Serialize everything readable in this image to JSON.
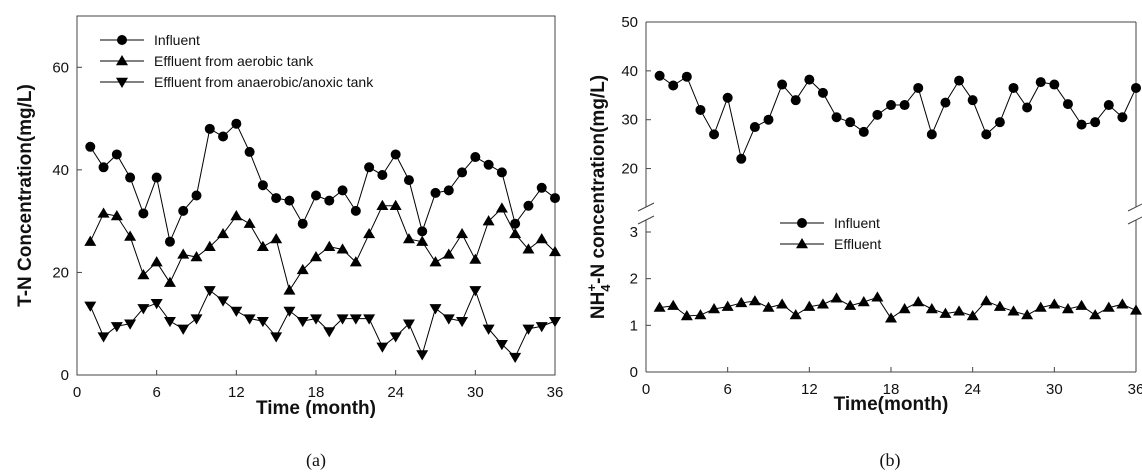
{
  "chart_data": [
    {
      "type": "line",
      "panel_label": "(a)",
      "xlabel": "Time (month)",
      "ylabel": "T-N Concentration(mg/L)",
      "xlim": [
        0,
        36
      ],
      "ylim": [
        0,
        70
      ],
      "xticks": [
        0,
        6,
        12,
        18,
        24,
        30,
        36
      ],
      "yticks": [
        0,
        20,
        40,
        60
      ],
      "legend_position": "top-left",
      "series": [
        {
          "name": "Influent",
          "marker": "circle",
          "x": [
            1,
            2,
            3,
            4,
            5,
            6,
            7,
            8,
            9,
            10,
            11,
            12,
            13,
            14,
            15,
            16,
            17,
            18,
            19,
            20,
            21,
            22,
            23,
            24,
            25,
            26,
            27,
            28,
            29,
            30,
            31,
            32,
            33,
            34,
            35,
            36
          ],
          "values": [
            44.5,
            40.5,
            43.0,
            38.5,
            31.5,
            38.5,
            26.0,
            32.0,
            35.0,
            48.0,
            46.5,
            49.0,
            43.5,
            37.0,
            34.5,
            34.0,
            29.5,
            35.0,
            34.0,
            36.0,
            32.0,
            40.5,
            39.0,
            43.0,
            38.0,
            28.0,
            35.5,
            36.0,
            39.5,
            42.5,
            41.0,
            39.5,
            29.5,
            33.0,
            36.5,
            34.5
          ]
        },
        {
          "name": "Effluent from aerobic tank",
          "marker": "triangle-up",
          "x": [
            1,
            2,
            3,
            4,
            5,
            6,
            7,
            8,
            9,
            10,
            11,
            12,
            13,
            14,
            15,
            16,
            17,
            18,
            19,
            20,
            21,
            22,
            23,
            24,
            25,
            26,
            27,
            28,
            29,
            30,
            31,
            32,
            33,
            34,
            35,
            36
          ],
          "values": [
            26.0,
            31.5,
            31.0,
            27.0,
            19.5,
            22.0,
            18.0,
            23.5,
            23.0,
            25.0,
            27.5,
            31.0,
            29.5,
            25.0,
            26.5,
            16.5,
            20.5,
            23.0,
            25.0,
            24.5,
            22.0,
            27.5,
            33.0,
            33.0,
            26.5,
            26.0,
            22.0,
            23.5,
            27.5,
            22.5,
            30.0,
            32.5,
            27.5,
            24.5,
            26.5,
            24.0
          ]
        },
        {
          "name": "Effluent from anaerobic/anoxic tank",
          "marker": "triangle-down",
          "x": [
            1,
            2,
            3,
            4,
            5,
            6,
            7,
            8,
            9,
            10,
            11,
            12,
            13,
            14,
            15,
            16,
            17,
            18,
            19,
            20,
            21,
            22,
            23,
            24,
            25,
            26,
            27,
            28,
            29,
            30,
            31,
            32,
            33,
            34,
            35,
            36
          ],
          "values": [
            13.5,
            7.5,
            9.5,
            10.0,
            13.0,
            14.0,
            10.5,
            9.0,
            11.0,
            16.5,
            14.5,
            12.5,
            11.0,
            10.5,
            7.5,
            12.5,
            10.5,
            11.0,
            8.5,
            11.0,
            11.0,
            11.0,
            5.5,
            7.5,
            10.0,
            4.0,
            13.0,
            11.0,
            10.5,
            16.5,
            9.0,
            6.0,
            3.5,
            9.0,
            9.5,
            10.5
          ]
        }
      ]
    },
    {
      "type": "line",
      "panel_label": "(b)",
      "xlabel": "Time(month)",
      "ylabel_main": "NH",
      "ylabel_sub": "4",
      "ylabel_sup": "+",
      "ylabel_rest": "-N concentration(mg/L)",
      "xlim": [
        0,
        36
      ],
      "xticks": [
        0,
        6,
        12,
        18,
        24,
        30,
        36
      ],
      "broken_y_axis": true,
      "upper_ylim": [
        15,
        50
      ],
      "upper_yticks": [
        20,
        30,
        40,
        50
      ],
      "lower_ylim": [
        0,
        3
      ],
      "lower_yticks": [
        0,
        1,
        2,
        3
      ],
      "legend_position": "center",
      "series": [
        {
          "name": "Influent",
          "marker": "circle",
          "x": [
            1,
            2,
            3,
            4,
            5,
            6,
            7,
            8,
            9,
            10,
            11,
            12,
            13,
            14,
            15,
            16,
            17,
            18,
            19,
            20,
            21,
            22,
            23,
            24,
            25,
            26,
            27,
            28,
            29,
            30,
            31,
            32,
            33,
            34,
            35,
            36
          ],
          "values": [
            39.0,
            37.0,
            38.8,
            32.0,
            27.0,
            34.5,
            22.0,
            28.5,
            30.0,
            37.2,
            34.0,
            38.2,
            35.5,
            30.5,
            29.5,
            27.5,
            31.0,
            33.0,
            33.0,
            36.5,
            27.0,
            33.5,
            38.0,
            34.0,
            27.0,
            29.5,
            36.5,
            32.5,
            37.7,
            37.2,
            33.2,
            29.0,
            29.5,
            33.0,
            30.5,
            36.5
          ]
        },
        {
          "name": "Effluent",
          "marker": "triangle-up",
          "x": [
            1,
            2,
            3,
            4,
            5,
            6,
            7,
            8,
            9,
            10,
            11,
            12,
            13,
            14,
            15,
            16,
            17,
            18,
            19,
            20,
            21,
            22,
            23,
            24,
            25,
            26,
            27,
            28,
            29,
            30,
            31,
            32,
            33,
            34,
            35,
            36
          ],
          "values": [
            1.38,
            1.42,
            1.2,
            1.22,
            1.35,
            1.4,
            1.48,
            1.52,
            1.38,
            1.45,
            1.22,
            1.4,
            1.45,
            1.58,
            1.42,
            1.5,
            1.6,
            1.15,
            1.35,
            1.5,
            1.35,
            1.25,
            1.3,
            1.2,
            1.52,
            1.4,
            1.3,
            1.22,
            1.38,
            1.45,
            1.35,
            1.42,
            1.22,
            1.38,
            1.45,
            1.32
          ]
        }
      ]
    }
  ]
}
